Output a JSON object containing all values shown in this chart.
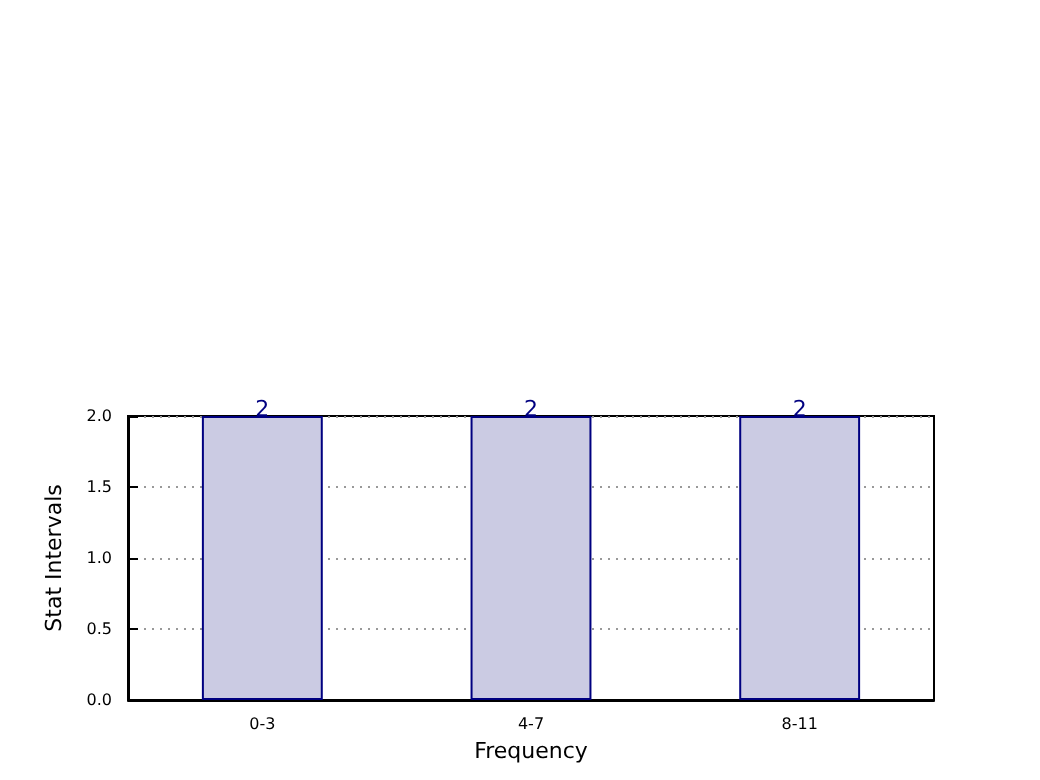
{
  "chart_data": {
    "type": "bar",
    "xlabel": "Frequency",
    "ylabel": "Stat Intervals",
    "categories": [
      "0-3",
      "4-7",
      "8-11"
    ],
    "values": [
      2,
      2,
      2
    ],
    "color": "#cbcbe3",
    "ylim": [
      0,
      2
    ],
    "yticks": [
      {
        "value": 0,
        "label": "0.0"
      },
      {
        "value": 0.5,
        "label": "0.5"
      },
      {
        "value": 1,
        "label": "1.0"
      },
      {
        "value": 1.5,
        "label": "1.5"
      },
      {
        "value": 2,
        "label": "2.0"
      }
    ],
    "grid": true,
    "data_labels": true
  }
}
